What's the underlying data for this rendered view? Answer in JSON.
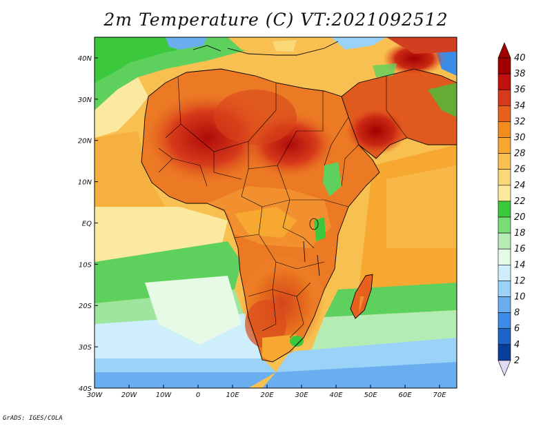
{
  "title": "2m Temperature (C) VT:2021092512",
  "footer": "GrADS: IGES/COLA",
  "map": {
    "projection": "lat-lon",
    "lon_range": [
      -30,
      75
    ],
    "lat_range": [
      -40,
      45
    ],
    "x_ticks": [
      "30W",
      "20W",
      "10W",
      "0",
      "10E",
      "20E",
      "30E",
      "40E",
      "50E",
      "60E",
      "70E"
    ],
    "y_ticks": [
      "40N",
      "30N",
      "20N",
      "10N",
      "EQ",
      "10S",
      "20S",
      "30S",
      "40S"
    ],
    "x_tick_values": [
      -30,
      -20,
      -10,
      0,
      10,
      20,
      30,
      40,
      50,
      60,
      70
    ],
    "y_tick_values": [
      40,
      30,
      20,
      10,
      0,
      -10,
      -20,
      -30,
      -40
    ],
    "field": "2m temperature",
    "units": "C"
  },
  "colorbar": {
    "labels": [
      "40",
      "38",
      "36",
      "34",
      "32",
      "30",
      "28",
      "26",
      "24",
      "22",
      "20",
      "18",
      "16",
      "14",
      "12",
      "10",
      "8",
      "6",
      "4",
      "2"
    ],
    "colors": [
      "#a00000",
      "#c01010",
      "#d63a1a",
      "#e8601e",
      "#f28c1e",
      "#f6a830",
      "#f8c050",
      "#fad878",
      "#fbe9a0",
      "#3cc83c",
      "#78dc78",
      "#b4ecb4",
      "#e6fae6",
      "#cdeefa",
      "#9ad2f8",
      "#6aaef0",
      "#3c8ce6",
      "#1e64c8",
      "#0a3c9a",
      "#0a1a70"
    ],
    "bottom_arrow_color": "#e0dcf8",
    "top_arrow_color": "#a00000"
  }
}
